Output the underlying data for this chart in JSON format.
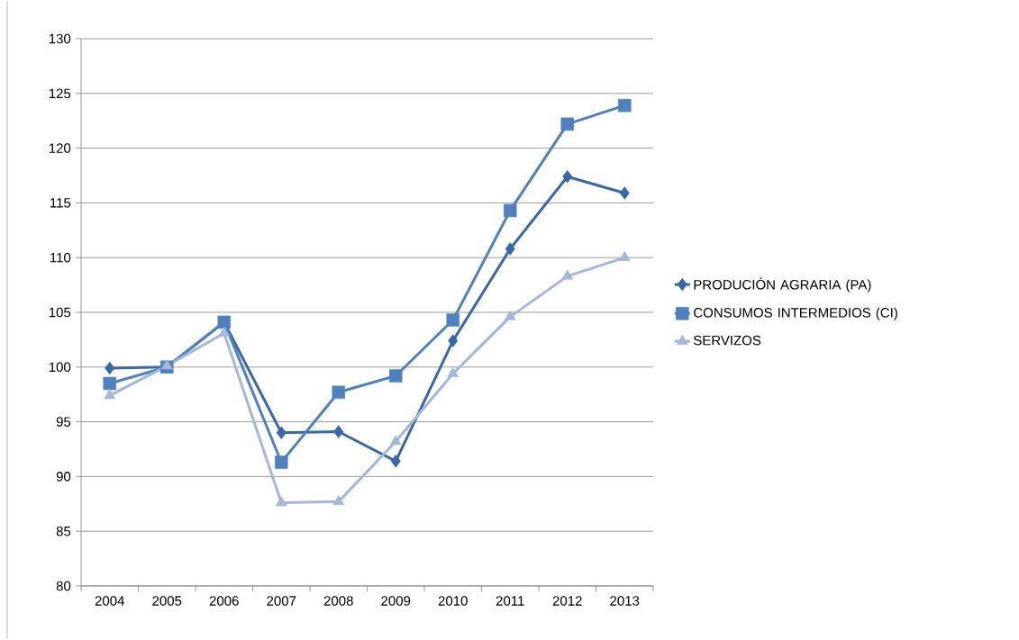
{
  "chart_data": {
    "type": "line",
    "categories": [
      "2004",
      "2005",
      "2006",
      "2007",
      "2008",
      "2009",
      "2010",
      "2011",
      "2012",
      "2013"
    ],
    "series": [
      {
        "name": "PRODUCIÓN AGRARIA (PA)",
        "color": "#3a67a5",
        "marker": "diamond",
        "values": [
          99.9,
          100,
          104.1,
          94.0,
          94.1,
          91.4,
          102.4,
          110.8,
          117.4,
          115.9
        ]
      },
      {
        "name": "CONSUMOS INTERMEDIOS (CI)",
        "color": "#4f81bd",
        "marker": "square",
        "values": [
          98.5,
          100,
          104.1,
          91.3,
          97.7,
          99.2,
          104.3,
          114.3,
          122.2,
          123.9
        ]
      },
      {
        "name": "SERVIZOS",
        "color": "#a5b7d9",
        "marker": "triangle",
        "values": [
          97.4,
          100.1,
          103.1,
          87.6,
          87.7,
          93.2,
          99.4,
          104.6,
          108.3,
          110.0
        ]
      }
    ],
    "ylim": [
      80,
      130
    ],
    "yticks": [
      80,
      85,
      90,
      95,
      100,
      105,
      110,
      115,
      120,
      125,
      130
    ],
    "grid": "y",
    "legend": "right",
    "line_style": "solid"
  }
}
